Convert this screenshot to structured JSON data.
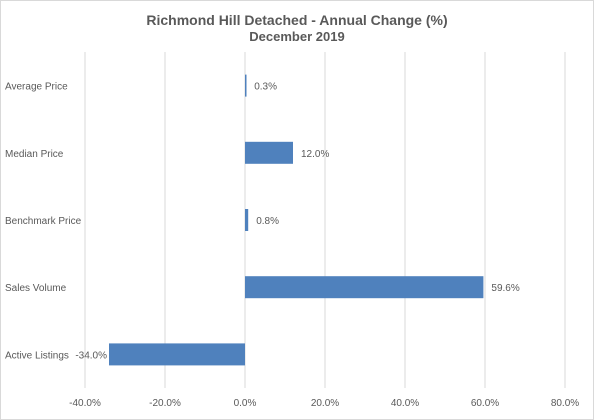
{
  "chart_data": {
    "type": "bar",
    "orientation": "horizontal",
    "title": "Richmond Hill Detached - Annual Change (%)",
    "subtitle": "December 2019",
    "categories": [
      "Average Price",
      "Median Price",
      "Benchmark Price",
      "Sales Volume",
      "Active Listings"
    ],
    "values": [
      0.3,
      12.0,
      0.8,
      59.6,
      -34.0
    ],
    "data_labels": [
      "0.3%",
      "12.0%",
      "0.8%",
      "59.6%",
      "-34.0%"
    ],
    "xlim": [
      -40,
      80
    ],
    "x_ticks": [
      -40,
      -20,
      0,
      20,
      40,
      60,
      80
    ],
    "x_tick_labels": [
      "-40.0%",
      "-20.0%",
      "0.0%",
      "20.0%",
      "40.0%",
      "60.0%",
      "80.0%"
    ],
    "xlabel": "",
    "ylabel": "",
    "grid": "vertical",
    "legend": "none",
    "bar_color": "#4f81bd"
  }
}
